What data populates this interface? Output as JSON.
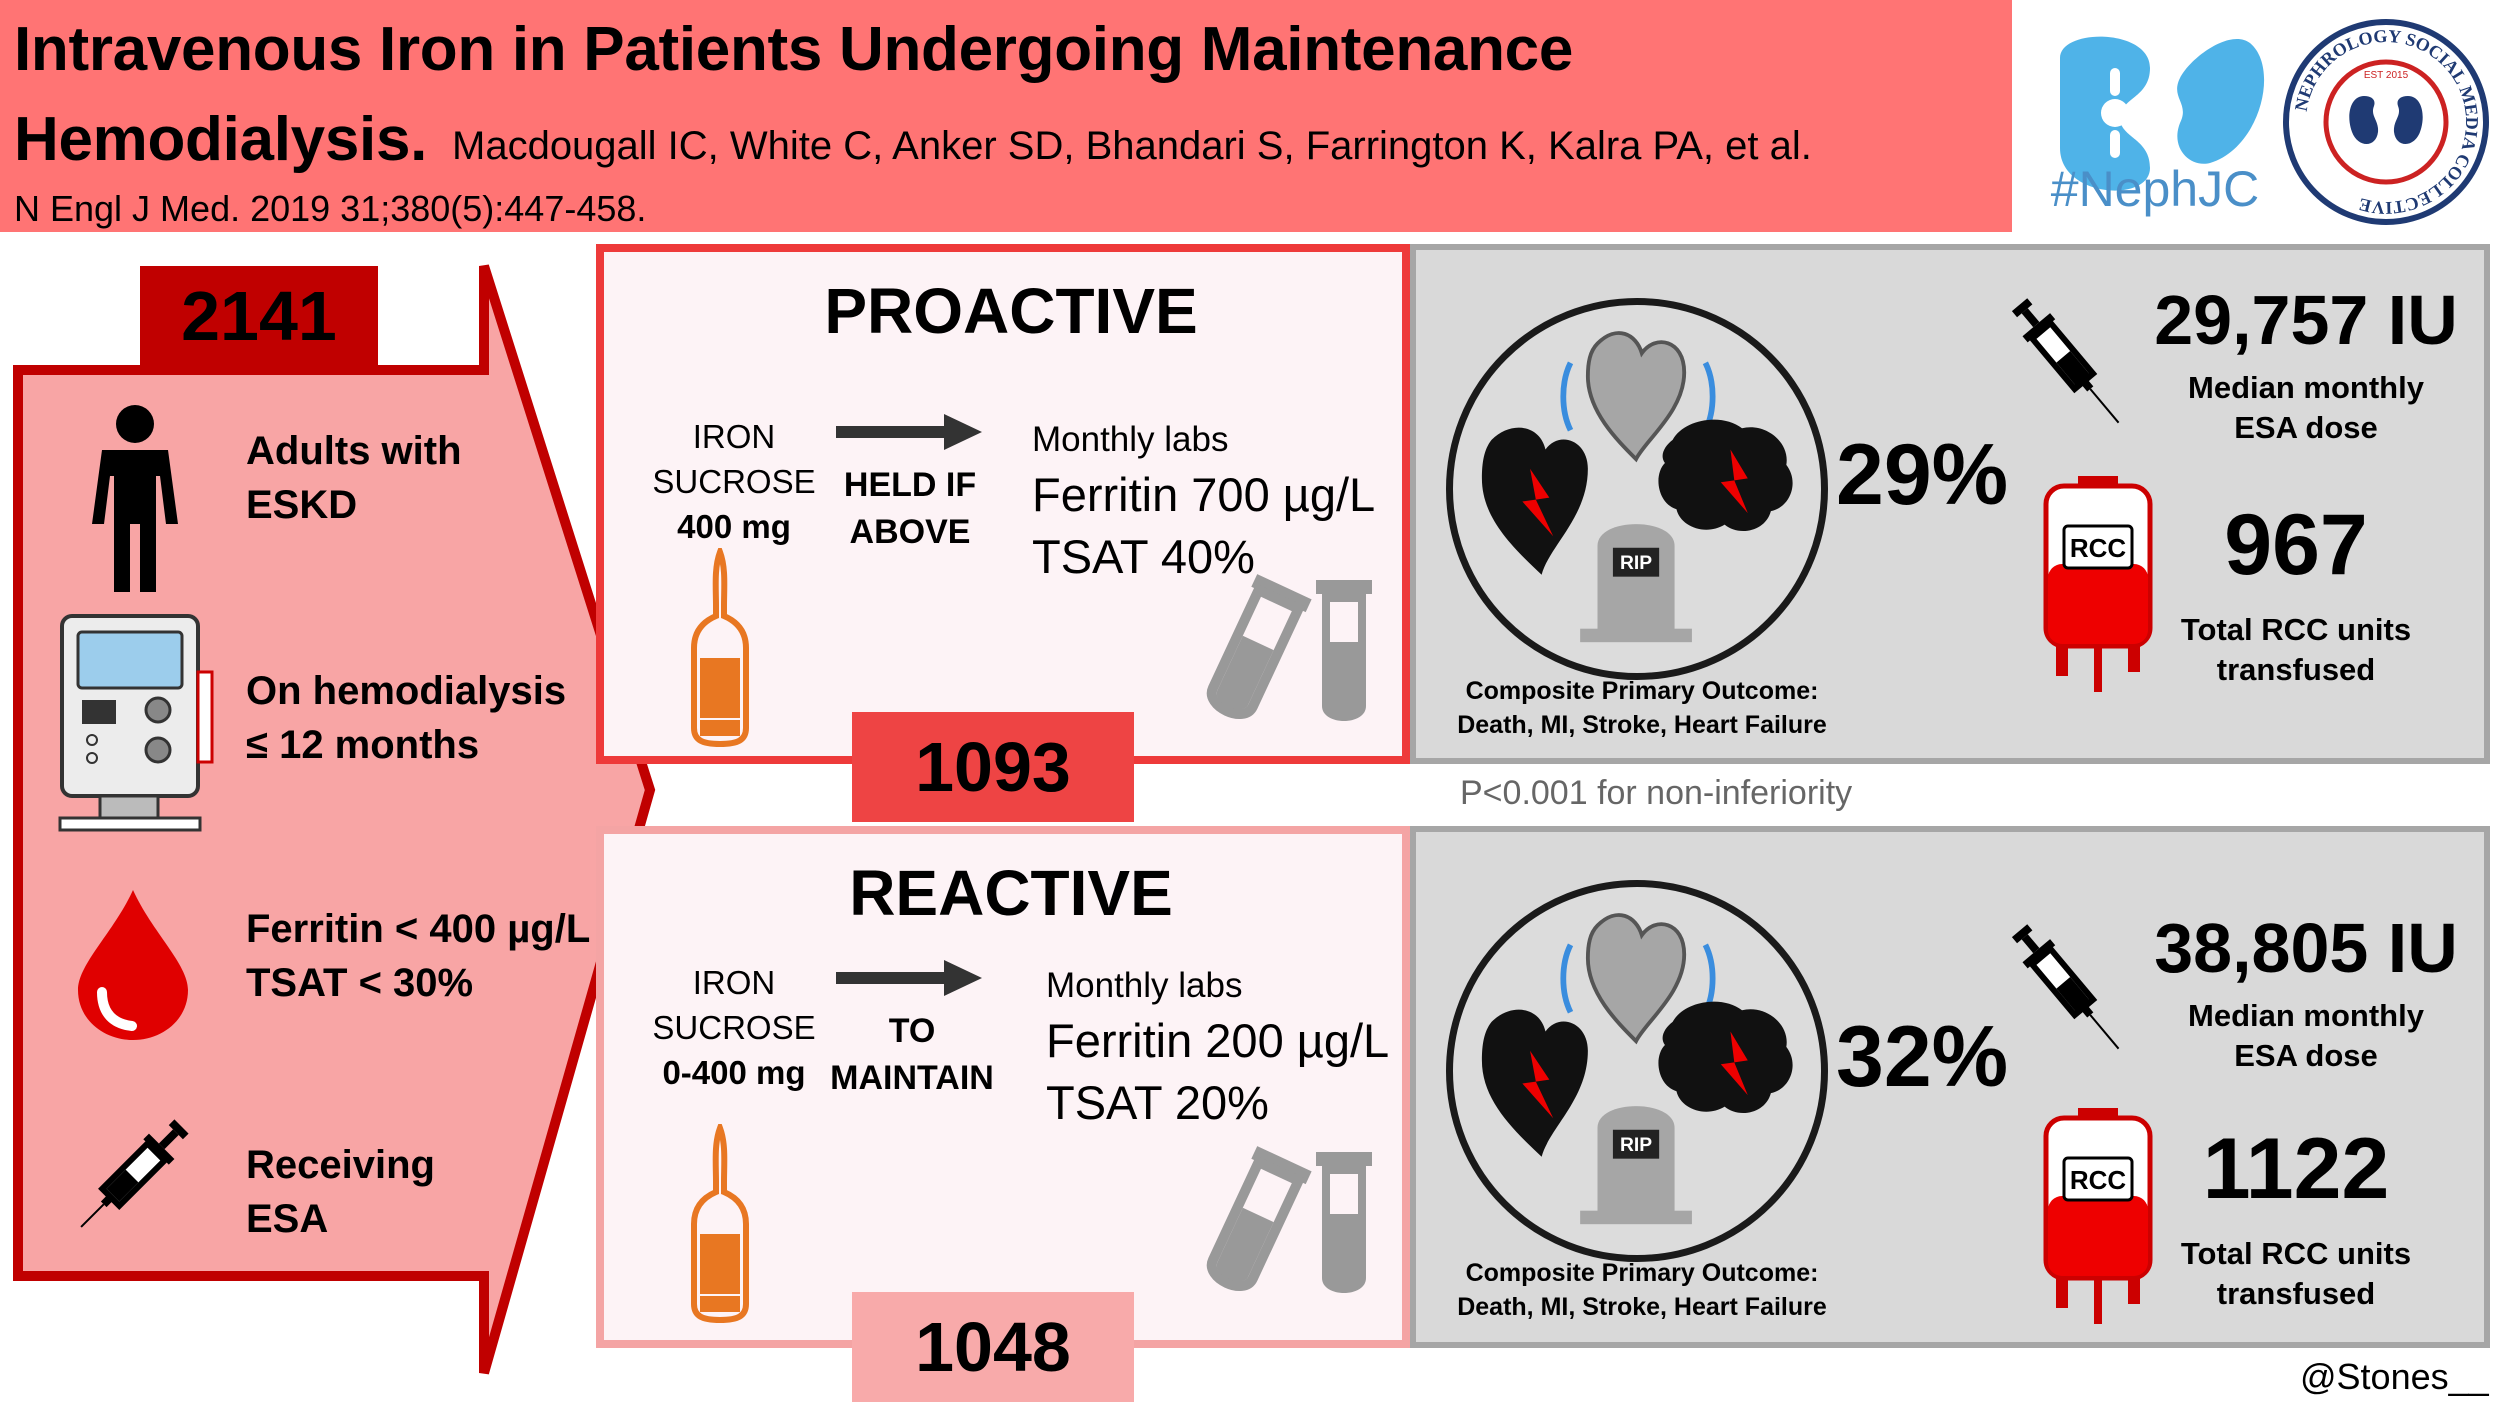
{
  "header": {
    "title_line1": "Intravenous Iron in Patients Undergoing Maintenance",
    "title_line2": "Hemodialysis.",
    "authors": "Macdougall IC, White C, Anker SD, Bhandari S, Farrington K, Kalra PA, et al.",
    "citation": "N Engl J Med. 2019 31;380(5):447-458.",
    "nephjc_label": "#NephJC",
    "nsmc_logo_text": "NEPHROLOGY SOCIAL MEDIA COLLECTIVE",
    "nsmc_est": "EST 2015"
  },
  "population": {
    "total": "2141",
    "criteria": [
      {
        "line1": "Adults with",
        "line2": "ESKD",
        "icon": "person-icon"
      },
      {
        "line1": "On hemodialysis",
        "line2": "≤ 12 months",
        "icon": "dialysis-machine-icon"
      },
      {
        "line1": "Ferritin < 400 µg/L",
        "line2": "TSAT < 30%",
        "icon": "blood-drop-icon"
      },
      {
        "line1": "Receiving",
        "line2": "ESA",
        "icon": "syringe-icon"
      }
    ]
  },
  "arms": {
    "proactive": {
      "title": "PROACTIVE",
      "iron_line1": "IRON",
      "iron_line2": "SUCROSE",
      "iron_dose": "400 mg",
      "rule_line1": "HELD IF",
      "rule_line2": "ABOVE",
      "labs_head": "Monthly labs",
      "ferritin": "Ferritin 700 µg/L",
      "tsat": "TSAT 40%",
      "count": "1093"
    },
    "reactive": {
      "title": "REACTIVE",
      "iron_line1": "IRON",
      "iron_line2": "SUCROSE",
      "iron_dose": "0-400 mg",
      "rule_line1": "TO",
      "rule_line2": "MAINTAIN",
      "labs_head": "Monthly labs",
      "ferritin": "Ferritin 200 µg/L",
      "tsat": "TSAT 20%",
      "count": "1048"
    }
  },
  "outcomes": {
    "proactive": {
      "composite_pct": "29%",
      "cap_line1": "Composite Primary Outcome:",
      "cap_line2": "Death, MI, Stroke, Heart Failure",
      "esa_dose": "29,757 IU",
      "esa_line1": "Median monthly",
      "esa_line2": "ESA dose",
      "rcc_units": "967",
      "rcc_line1": "Total RCC units",
      "rcc_line2": "transfused",
      "rcc_bag_label": "RCC",
      "rip_label": "RIP"
    },
    "reactive": {
      "composite_pct": "32%",
      "cap_line1": "Composite Primary Outcome:",
      "cap_line2": "Death, MI, Stroke, Heart Failure",
      "esa_dose": "38,805 IU",
      "esa_line1": "Median monthly",
      "esa_line2": "ESA dose",
      "rcc_units": "1122",
      "rcc_line1": "Total RCC units",
      "rcc_line2": "transfused",
      "rcc_bag_label": "RCC",
      "rip_label": "RIP"
    }
  },
  "p_value": "P<0.001 for non-inferiority",
  "credit": "@Stones__",
  "colors": {
    "header_bg": "#ff7474",
    "proactive_border": "#ee3a3a",
    "reactive_border": "#f4a4a4",
    "population_red": "#c00000",
    "population_fill": "#f8a5a5",
    "panel_gray": "#d9d9d9",
    "iron_orange": "#e87722",
    "nephjc_blue": "#4a8fc8"
  }
}
